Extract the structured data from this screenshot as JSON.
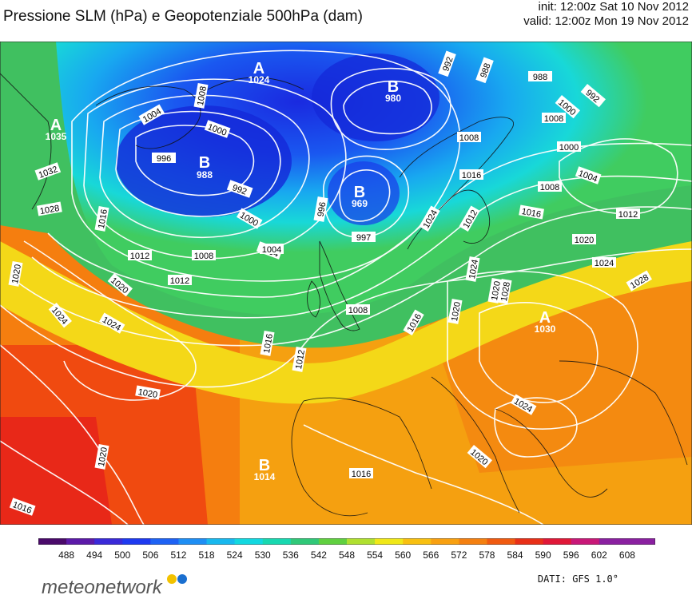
{
  "header": {
    "title": "Pressione SLM (hPa) e Geopotenziale 500hPa (dam)",
    "init": "init: 12:00z Sat 10 Nov 2012",
    "valid": "valid: 12:00z Mon 19 Nov 2012"
  },
  "centers": [
    {
      "letter": "A",
      "value": "1024"
    },
    {
      "letter": "B",
      "value": "980"
    },
    {
      "letter": "A",
      "value": "1035"
    },
    {
      "letter": "B",
      "value": "988"
    },
    {
      "letter": "B",
      "value": "969"
    },
    {
      "letter": "A",
      "value": "1030"
    },
    {
      "letter": "B",
      "value": "1014"
    }
  ],
  "isobar_labels": [
    "1004",
    "1008",
    "1000",
    "996",
    "992",
    "1032",
    "1028",
    "1016",
    "1012",
    "1008",
    "1004",
    "1000",
    "996",
    "992",
    "988",
    "988",
    "992",
    "1008",
    "1000",
    "1004",
    "1008",
    "1012",
    "1016",
    "1016",
    "1012",
    "1024",
    "1020",
    "1024",
    "1028",
    "1028",
    "1020",
    "1024",
    "1016",
    "1020",
    "1012",
    "1008",
    "1016",
    "1020",
    "1020",
    "1024",
    "1024",
    "1020",
    "1020",
    "1016",
    "1016",
    "1024",
    "1020",
    "997",
    "1012",
    "1004",
    "1000",
    "1008"
  ],
  "colorbar": {
    "ticks": [
      "488",
      "494",
      "500",
      "506",
      "512",
      "518",
      "524",
      "530",
      "536",
      "542",
      "548",
      "554",
      "560",
      "566",
      "572",
      "578",
      "584",
      "590",
      "596",
      "602",
      "608"
    ],
    "colors": [
      "#4a0a6a",
      "#5c1aa8",
      "#3a2ad8",
      "#1e3af0",
      "#1e62f4",
      "#1e8ef4",
      "#18b8ee",
      "#12d8e0",
      "#18d8b0",
      "#30c878",
      "#60d040",
      "#b0e030",
      "#f0e818",
      "#f8c010",
      "#f8a010",
      "#f48010",
      "#f05a10",
      "#e83018",
      "#e01838",
      "#c81878",
      "#8a20a0"
    ]
  },
  "footer": {
    "logo": "meteonetwork",
    "credit": "DATI: GFS 1.0°",
    "logo_dot_colors": [
      "#f2c200",
      "#1a6fd0"
    ]
  }
}
